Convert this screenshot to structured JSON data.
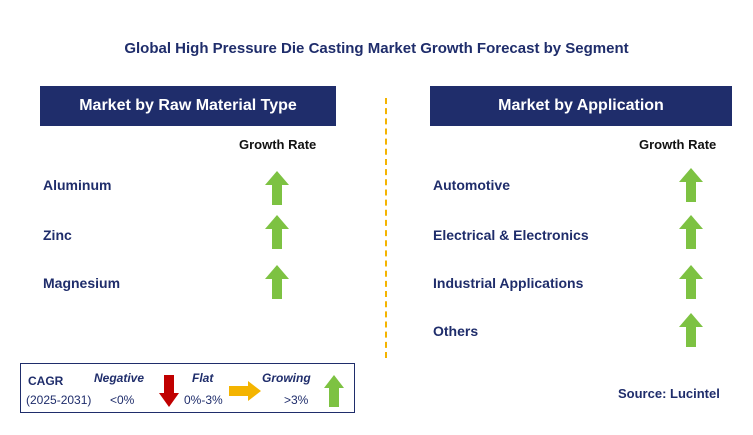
{
  "title": "Global High Pressure Die Casting Market Growth Forecast by Segment",
  "left_panel": {
    "header": "Market by Raw Material Type",
    "column_label": "Growth Rate",
    "rows": [
      {
        "label": "Aluminum",
        "trend": "growing"
      },
      {
        "label": "Zinc",
        "trend": "growing"
      },
      {
        "label": "Magnesium",
        "trend": "growing"
      }
    ]
  },
  "right_panel": {
    "header": "Market by Application",
    "column_label": "Growth Rate",
    "rows": [
      {
        "label": "Automotive",
        "trend": "growing"
      },
      {
        "label": "Electrical & Electronics",
        "trend": "growing"
      },
      {
        "label": "Industrial Applications",
        "trend": "growing"
      },
      {
        "label": "Others",
        "trend": "growing"
      }
    ]
  },
  "legend": {
    "cagr_label": "CAGR",
    "period": "(2025-2031)",
    "negative_label": "Negative",
    "negative_range": "<0%",
    "flat_label": "Flat",
    "flat_range": "0%-3%",
    "growing_label": "Growing",
    "growing_range": ">3%"
  },
  "source": "Source: Lucintel",
  "colors": {
    "navy": "#1f2d6b",
    "growing": "#7dc242",
    "negative": "#c00000",
    "flat": "#f4b400"
  },
  "icons": {
    "growing": "arrow-up-icon",
    "negative": "arrow-down-icon",
    "flat": "arrow-right-icon"
  }
}
